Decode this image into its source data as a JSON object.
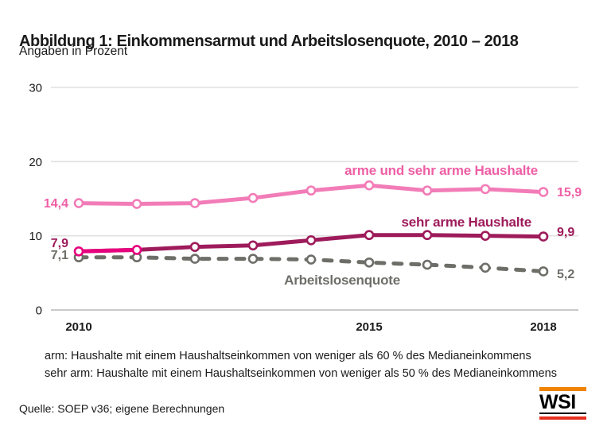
{
  "header": {
    "title": "Abbildung 1: Einkommensarmut und Arbeitslosenquote, 2010 – 2018",
    "subtitle": "Angaben in Prozent"
  },
  "chart_data": {
    "type": "line",
    "x": [
      2010,
      2011,
      2012,
      2013,
      2014,
      2015,
      2016,
      2017,
      2018
    ],
    "xtick_labels": [
      "2010",
      "2015",
      "2018"
    ],
    "xtick_years": [
      2010,
      2015,
      2018
    ],
    "yticks": [
      0,
      10,
      20,
      30
    ],
    "ylim": [
      0,
      30
    ],
    "grid": "horizontal",
    "legend_position": "inline labels beside lines",
    "series": [
      {
        "name": "arme und sehr arme Haushalte",
        "values": [
          14.4,
          14.3,
          14.4,
          15.1,
          16.1,
          16.8,
          16.1,
          16.3,
          15.9
        ],
        "first_value_label": "14,4",
        "last_value_label": "15,9",
        "color": "#F27CB7",
        "text_color": "#EE5FA5",
        "style": "solid"
      },
      {
        "name": "sehr arme Haushalte",
        "values": [
          7.9,
          8.1,
          8.5,
          8.7,
          9.4,
          10.1,
          10.1,
          10.0,
          9.9
        ],
        "first_value_label": "7,9",
        "last_value_label": "9,9",
        "color": "#9E1B5B",
        "highlight_first_segment_color": "#E6007E",
        "text_color": "#9E1B5B",
        "style": "solid"
      },
      {
        "name": "Arbeitslosenquote",
        "values": [
          7.1,
          7.1,
          6.9,
          6.9,
          6.8,
          6.4,
          6.1,
          5.7,
          5.2
        ],
        "first_value_label": "7,1",
        "last_value_label": "5,2",
        "color": "#6E6E69",
        "text_color": "#6E6E69",
        "style": "dashed"
      }
    ]
  },
  "footnotes": [
    "arm: Haushalte mit einem Haushaltseinkommen von weniger als 60 % des Medianeinkommens",
    "sehr arm: Haushalte mit einem Haushaltseinkommen von weniger als 50 % des Medianeinkommens"
  ],
  "source": "Quelle: SOEP v36; eigene Berechnungen",
  "logo": {
    "text": "WSI",
    "top_bar_color": "#F08300",
    "bottom_bar_color": "#E6301E"
  }
}
